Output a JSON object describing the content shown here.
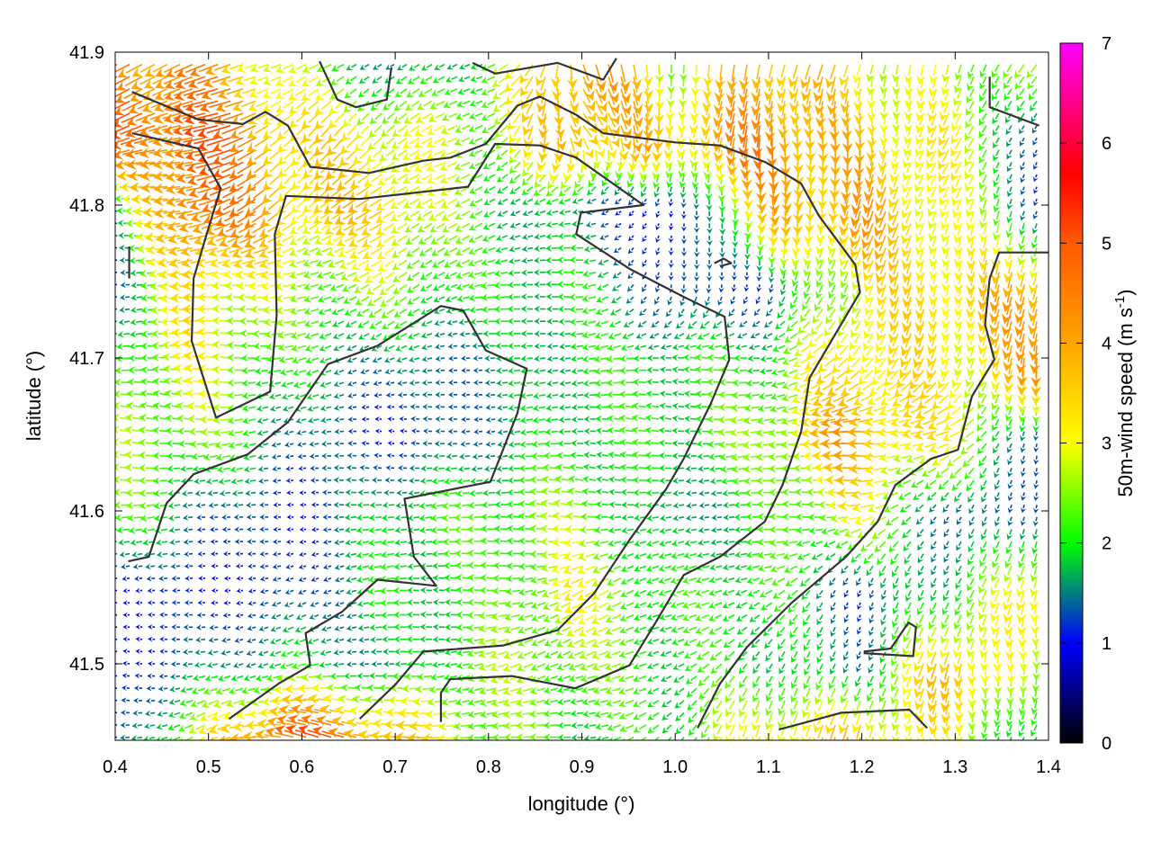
{
  "chart_data": {
    "type": "vector-field",
    "title": "",
    "xlabel": "longitude (°)",
    "ylabel": "latitude (°)",
    "xlim": [
      0.4,
      1.4
    ],
    "ylim": [
      41.45,
      41.9
    ],
    "xticks": [
      "0.4",
      "0.5",
      "0.6",
      "0.7",
      "0.8",
      "0.9",
      "1.0",
      "1.1",
      "1.2",
      "1.3",
      "1.4"
    ],
    "yticks": [
      "41.5",
      "41.6",
      "41.7",
      "41.8",
      "41.9"
    ],
    "colorbar": {
      "label": "50m-wind speed (m s",
      "label_sup": "-1",
      "label_end": ")",
      "range": [
        0,
        7
      ],
      "ticks": [
        "0",
        "1",
        "2",
        "3",
        "4",
        "5",
        "6",
        "7"
      ],
      "stops": [
        [
          0,
          "#000000"
        ],
        [
          1,
          "#0000ff"
        ],
        [
          1.5,
          "#007f80"
        ],
        [
          2,
          "#00ff00"
        ],
        [
          3,
          "#ffff00"
        ],
        [
          4,
          "#ffa500"
        ],
        [
          5,
          "#ff5a00"
        ],
        [
          5.7,
          "#ff0000"
        ],
        [
          7,
          "#ff00ff"
        ]
      ]
    },
    "grid_lon": [
      0.4,
      0.5,
      0.6,
      0.7,
      0.8,
      0.9,
      1.0,
      1.1,
      1.2,
      1.3,
      1.4
    ],
    "grid_lat": [
      41.9,
      41.85,
      41.8,
      41.75,
      41.7,
      41.65,
      41.6,
      41.55,
      41.5,
      41.45
    ],
    "speed": [
      [
        4.5,
        4.0,
        2.5,
        1.2,
        2.0,
        4.5,
        2.5,
        4.0,
        3.0,
        2.5,
        2.5
      ],
      [
        4.5,
        5.0,
        3.5,
        3.0,
        2.5,
        4.0,
        3.5,
        4.5,
        3.5,
        3.0,
        1.0
      ],
      [
        1.5,
        5.0,
        3.5,
        3.5,
        2.0,
        1.5,
        0.8,
        3.5,
        4.0,
        3.0,
        1.0
      ],
      [
        1.2,
        3.5,
        2.5,
        2.5,
        2.0,
        2.0,
        1.2,
        1.2,
        3.0,
        3.5,
        4.0
      ],
      [
        2.0,
        3.0,
        2.0,
        1.5,
        1.5,
        2.0,
        2.0,
        2.0,
        3.5,
        3.0,
        4.0
      ],
      [
        2.5,
        2.5,
        1.5,
        1.0,
        1.5,
        2.0,
        2.0,
        2.5,
        4.0,
        3.0,
        1.0
      ],
      [
        2.5,
        1.5,
        1.0,
        2.0,
        2.2,
        2.5,
        1.5,
        2.0,
        3.0,
        1.2,
        1.5
      ],
      [
        1.2,
        1.0,
        1.2,
        2.0,
        2.0,
        3.0,
        2.0,
        2.2,
        1.2,
        2.0,
        3.5
      ],
      [
        1.0,
        1.5,
        2.0,
        1.5,
        2.5,
        2.5,
        2.0,
        2.0,
        1.5,
        4.0,
        2.0
      ],
      [
        1.0,
        3.0,
        5.0,
        4.0,
        2.5,
        2.0,
        2.0,
        3.5,
        4.0,
        2.5,
        1.5
      ]
    ],
    "direction_deg": [
      [
        200,
        200,
        210,
        200,
        200,
        290,
        260,
        265,
        250,
        250,
        240
      ],
      [
        200,
        200,
        220,
        220,
        210,
        300,
        260,
        270,
        260,
        250,
        240
      ],
      [
        185,
        190,
        220,
        220,
        200,
        190,
        270,
        270,
        260,
        250,
        240
      ],
      [
        180,
        180,
        200,
        210,
        190,
        185,
        260,
        265,
        250,
        250,
        265
      ],
      [
        180,
        180,
        190,
        200,
        190,
        180,
        180,
        190,
        220,
        260,
        270
      ],
      [
        180,
        180,
        190,
        180,
        180,
        180,
        180,
        180,
        185,
        200,
        260
      ],
      [
        180,
        180,
        190,
        180,
        180,
        180,
        180,
        180,
        190,
        230,
        270
      ],
      [
        180,
        190,
        200,
        180,
        185,
        200,
        200,
        210,
        240,
        250,
        260
      ],
      [
        180,
        190,
        190,
        190,
        190,
        200,
        210,
        230,
        250,
        260,
        260
      ],
      [
        180,
        200,
        170,
        170,
        180,
        190,
        220,
        260,
        265,
        250,
        240
      ]
    ],
    "contours": [
      [
        [
          0.418,
          41.874
        ],
        [
          0.489,
          41.856
        ],
        [
          0.537,
          41.853
        ],
        [
          0.561,
          41.861
        ],
        [
          0.585,
          41.852
        ],
        [
          0.609,
          41.825
        ],
        [
          0.672,
          41.821
        ],
        [
          0.73,
          41.829
        ],
        [
          0.759,
          41.831
        ],
        [
          0.797,
          41.84
        ],
        [
          0.831,
          41.865
        ],
        [
          0.855,
          41.871
        ],
        [
          0.894,
          41.859
        ],
        [
          0.923,
          41.847
        ],
        [
          1.0,
          41.841
        ],
        [
          1.048,
          41.839
        ],
        [
          1.097,
          41.828
        ],
        [
          1.135,
          41.814
        ],
        [
          1.154,
          41.793
        ],
        [
          1.193,
          41.761
        ],
        [
          1.198,
          41.743
        ],
        [
          1.173,
          41.717
        ],
        [
          1.144,
          41.687
        ],
        [
          1.135,
          41.652
        ],
        [
          1.115,
          41.617
        ],
        [
          1.096,
          41.593
        ],
        [
          1.048,
          41.57
        ],
        [
          1.009,
          41.558
        ],
        [
          0.98,
          41.528
        ],
        [
          0.951,
          41.499
        ],
        [
          0.893,
          41.484
        ],
        [
          0.825,
          41.492
        ],
        [
          0.759,
          41.49
        ],
        [
          0.749,
          41.481
        ],
        [
          0.749,
          41.462
        ]
      ],
      [
        [
          0.418,
          41.847
        ],
        [
          0.489,
          41.837
        ],
        [
          0.513,
          41.811
        ],
        [
          0.498,
          41.781
        ],
        [
          0.484,
          41.752
        ],
        [
          0.482,
          41.711
        ],
        [
          0.508,
          41.661
        ],
        [
          0.566,
          41.678
        ],
        [
          0.573,
          41.728
        ],
        [
          0.571,
          41.781
        ],
        [
          0.583,
          41.806
        ],
        [
          0.662,
          41.804
        ],
        [
          0.778,
          41.812
        ],
        [
          0.807,
          41.84
        ],
        [
          0.855,
          41.839
        ],
        [
          0.894,
          41.831
        ],
        [
          0.966,
          41.8
        ],
        [
          0.899,
          41.795
        ],
        [
          0.894,
          41.781
        ],
        [
          0.952,
          41.758
        ],
        [
          1.009,
          41.74
        ],
        [
          1.053,
          41.727
        ],
        [
          1.058,
          41.699
        ],
        [
          1.038,
          41.67
        ],
        [
          1.009,
          41.634
        ],
        [
          0.99,
          41.614
        ],
        [
          0.951,
          41.581
        ],
        [
          0.913,
          41.546
        ],
        [
          0.874,
          41.522
        ],
        [
          0.816,
          41.512
        ],
        [
          0.73,
          41.508
        ],
        [
          0.701,
          41.487
        ],
        [
          0.662,
          41.464
        ]
      ],
      [
        [
          0.414,
          41.567
        ],
        [
          0.436,
          41.57
        ],
        [
          0.455,
          41.605
        ],
        [
          0.484,
          41.624
        ],
        [
          0.542,
          41.637
        ],
        [
          0.585,
          41.658
        ],
        [
          0.628,
          41.696
        ],
        [
          0.681,
          41.708
        ],
        [
          0.749,
          41.734
        ],
        [
          0.773,
          41.731
        ],
        [
          0.797,
          41.705
        ],
        [
          0.841,
          41.693
        ],
        [
          0.831,
          41.664
        ],
        [
          0.802,
          41.619
        ],
        [
          0.71,
          41.608
        ],
        [
          0.72,
          41.57
        ],
        [
          0.744,
          41.551
        ],
        [
          0.681,
          41.555
        ],
        [
          0.643,
          41.534
        ],
        [
          0.604,
          41.52
        ],
        [
          0.609,
          41.499
        ],
        [
          0.575,
          41.487
        ],
        [
          0.522,
          41.464
        ]
      ],
      [
        [
          1.39,
          41.852
        ],
        [
          1.337,
          41.864
        ],
        [
          1.337,
          41.884
        ]
      ],
      [
        [
          1.4,
          41.769
        ],
        [
          1.347,
          41.769
        ],
        [
          1.337,
          41.752
        ],
        [
          1.332,
          41.722
        ],
        [
          1.342,
          41.699
        ],
        [
          1.318,
          41.675
        ],
        [
          1.303,
          41.64
        ],
        [
          1.274,
          41.634
        ],
        [
          1.236,
          41.617
        ],
        [
          1.217,
          41.593
        ],
        [
          1.183,
          41.57
        ],
        [
          1.125,
          41.54
        ],
        [
          1.077,
          41.511
        ],
        [
          1.048,
          41.487
        ],
        [
          1.024,
          41.458
        ]
      ],
      [
        [
          1.111,
          41.457
        ],
        [
          1.178,
          41.468
        ],
        [
          1.251,
          41.47
        ],
        [
          1.27,
          41.458
        ]
      ],
      [
        [
          1.202,
          41.508
        ],
        [
          1.231,
          41.51
        ],
        [
          1.25,
          41.527
        ],
        [
          1.258,
          41.524
        ],
        [
          1.255,
          41.505
        ],
        [
          1.202,
          41.507
        ]
      ],
      [
        [
          0.619,
          41.894
        ],
        [
          0.638,
          41.869
        ],
        [
          0.658,
          41.864
        ],
        [
          0.691,
          41.869
        ],
        [
          0.696,
          41.89
        ]
      ],
      [
        [
          0.783,
          41.893
        ],
        [
          0.807,
          41.886
        ],
        [
          0.874,
          41.893
        ],
        [
          0.923,
          41.882
        ],
        [
          0.937,
          41.896
        ]
      ],
      [
        [
          1.042,
          41.762
        ],
        [
          1.052,
          41.765
        ],
        [
          1.06,
          41.762
        ],
        [
          1.048,
          41.76
        ]
      ],
      [
        [
          0.415,
          41.773
        ],
        [
          0.415,
          41.752
        ]
      ]
    ]
  }
}
